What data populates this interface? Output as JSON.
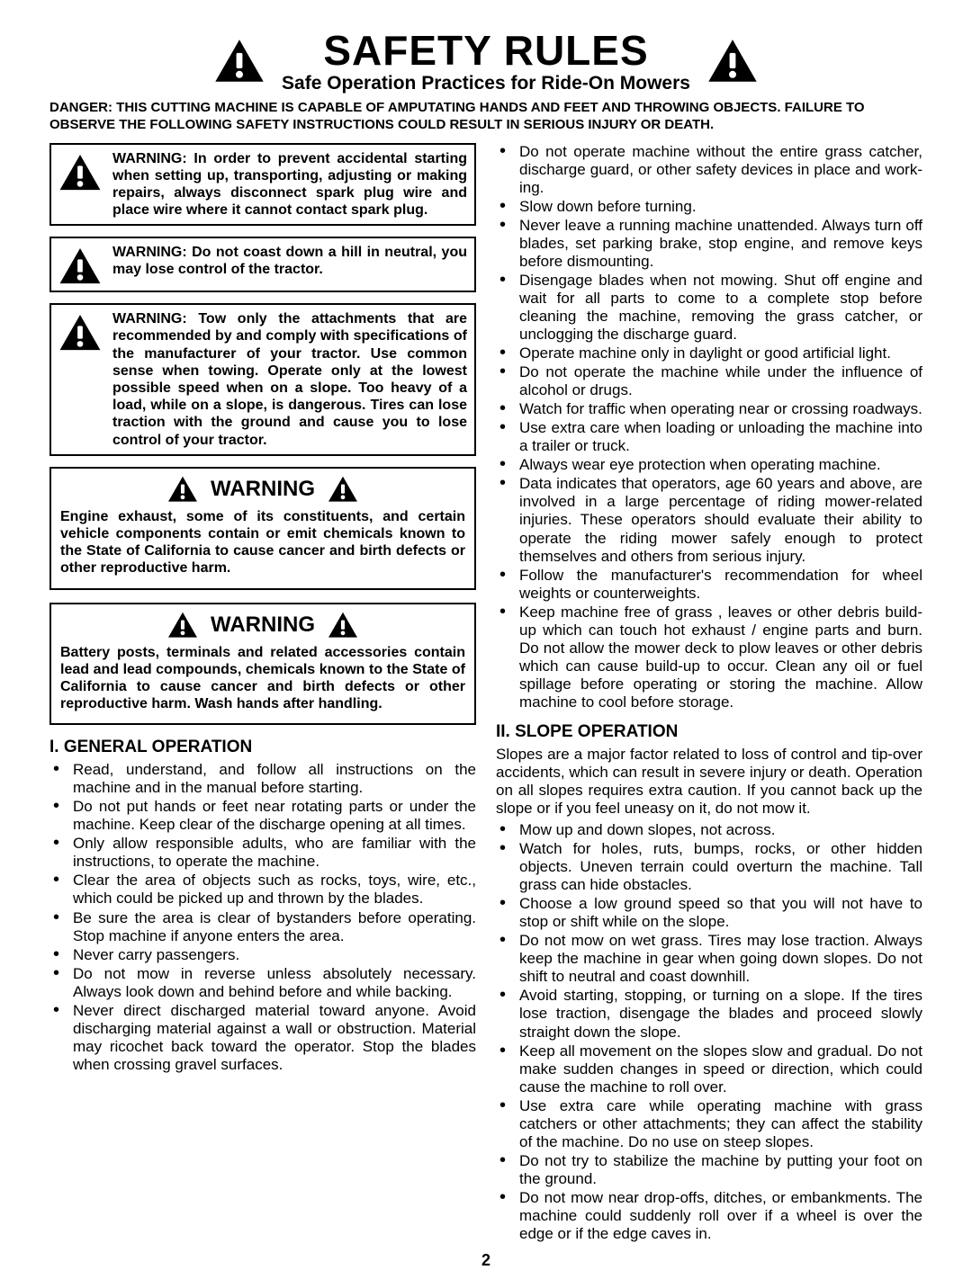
{
  "header": {
    "title": "SAFETY RULES",
    "subtitle": "Safe Operation Practices for Ride-On Mowers"
  },
  "danger": "DANGER:  THIS CUTTING MACHINE IS CAPABLE OF AMPUTATING HANDS AND FEET AND THROWING OBJECTS.  FAILURE TO OBSERVE THE FOLLOWING SAFETY INSTRUCTIONS COULD RESULT IN SERIOUS INJURY OR DEATH.",
  "warn_boxes": [
    "WARNING:  In order to prevent acci­den­tal starting when setting up, trans­port­ing, adjusting or making repairs, always disconnect spark plug wire and place wire where it cannot contact spark plug.",
    "WARNING:  Do not coast down a hill in neutral, you may lose control of the tractor.",
    "WARNING:  Tow only the attachments that are recommended by and comply with specifications of the manufacturer of your tractor. Use common sense when towing. Operate only at the low­est possible speed when on a slope. Too heavy of a load, while on a slope, is dangerous.  Tires can lose traction with the ground and cause you to lose control of your tractor."
  ],
  "warn_big": [
    {
      "head": "WARNING",
      "text": "Engine exhaust, some of its constituents, and cer­tain vehicle components contain or emit chemicals known to the State of California to cause cancer and birth defects or other reproductive harm."
    },
    {
      "head": "WARNING",
      "text": "Battery posts, terminals and related accessories contain lead and lead compounds, chemicals known to the State of California to cause cancer and birth defects or other reproductive harm. Wash hands after handling."
    }
  ],
  "section1": {
    "head": "I. GENERAL OPERATION",
    "items_left": [
      "Read, understand, and follow all instructions on the machine and in the manual before starting.",
      "Do not put hands or feet near rotating parts or under the machine. Keep clear of the discharge opening at all times.",
      "Only allow responsible adults, who are familiar with the instructions, to operate the machine.",
      "Clear the area of objects such as  rocks, toys, wire, etc., which could be picked up and thrown by the blades.",
      "Be sure the area is clear of bystanders before operat­ing.  Stop machine if anyone enters the area.",
      "Never carry passengers.",
      "Do not mow in reverse unless absolutely necessary. Always look down and behind before and while back­ing.",
      "Never direct discharged material toward anyone. Avoid discharging material against a wall or obstruction. Ma­te­ri­al may ricochet back toward the operator. Stop the blades when crossing gravel surfaces."
    ],
    "items_right": [
      "Do not operate machine without the entire grass catcher, discharge guard, or other safety de­vic­es in place and work­ing.",
      "Slow down before turning.",
      "Never leave a running machine unattended.  Always turn off blades, set parking brake, stop engine, and remove keys before dismounting.",
      "Disengage blades when not mowing. Shut off engine and wait for all parts to come to a complete stop before cleaning the machine, removing the grass catcher, or unclogging the discharge guard.",
      "Operate machine only in daylight or good artificial light.",
      "Do not operate the machine while under the influence of alcohol or drugs.",
      "Watch for traffic when operating near or crossing road­ways.",
      "Use extra care when loading or unloading the machine into a trailer or truck.",
      "Always wear eye protection when operating ma­chine.",
      "Data indicates that operators, age 60 years and above, are involved in a large percentage of riding mower-re­lat­ed injuries.  These op­er­a­tors should evaluate their ability to operate the riding mower safely enough to protect themselves and others from serious injury.",
      "Follow the manufacturer's recommendation for wheel weights or counterweights.",
      "Keep machine free of grass , leaves or other debris build-up which can touch hot exhaust / engine parts and burn. Do not allow the mower deck to plow leaves or other debris which can cause build-up to occur. Clean any oil or fuel spillage before operating or storing the machine. Allow machine to cool before stor­age."
    ]
  },
  "section2": {
    "head": "II. SLOPE OPERATION",
    "intro": "Slopes are a major factor related to loss of control and tip-over accidents, which can result in severe injury or death.  Operation on all slopes requires extra caution. If you cannot back up the slope or if you feel uneasy on it, do not mow it.",
    "items": [
      "Mow up and down slopes, not across.",
      "Watch for holes, ruts, bumps, rocks, or other hidden objects.  Uneven terrain could overturn the machine. Tall grass can hide obstacles.",
      "Choose a low ground speed so that you will not have to stop or shift while on the slope.",
      "Do not mow on wet grass. Tires may lose traction.  Always keep the machine in gear when going down slopes. Do not shift to neutral and coast downhill.",
      "Avoid starting, stopping, or turning on a slope.  If the tires lose traction,  disengage the blades and proceed slowly straight down the slope.",
      "Keep all movement on the slopes slow and gradual. Do not make sudden changes in speed or direction, which could cause the machine to roll over.",
      "Use extra care while operating machine with grass catchers or other attachments; they can affect the sta­bil­i­ty of the machine. Do no use on steep slopes.",
      "Do not  try to stabilize the machine by putting your foot on the ground.",
      "Do not mow near drop-offs, ditches, or embankments. The machine could suddenly roll over if a wheel is over the edge or if the edge caves in."
    ]
  },
  "page_number": "2"
}
